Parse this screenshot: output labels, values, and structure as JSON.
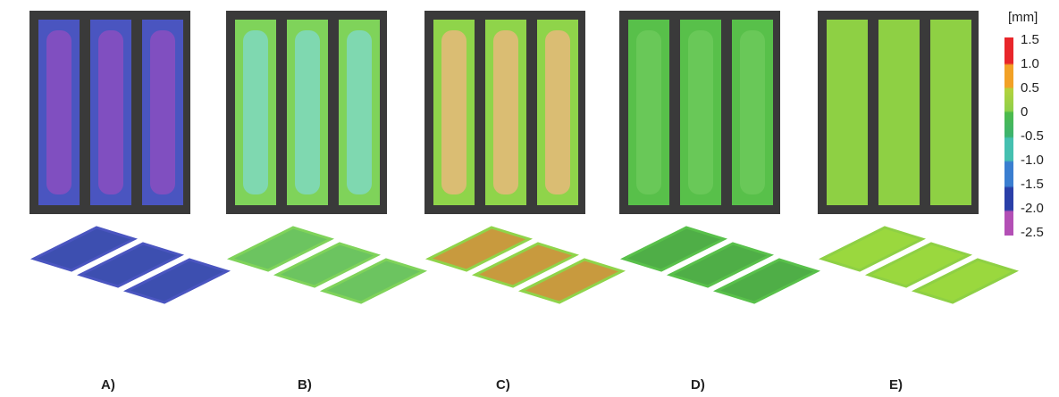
{
  "colorbar": {
    "unit": "[mm]",
    "labels": [
      "1.5",
      "1.0",
      "0.5",
      "0",
      "-0.5",
      "-1.0",
      "-1.5",
      "-2.0",
      "-2.5"
    ]
  },
  "panels": [
    {
      "label": "A)"
    },
    {
      "label": "B)"
    },
    {
      "label": "C)"
    },
    {
      "label": "D)"
    },
    {
      "label": "E)"
    }
  ]
}
